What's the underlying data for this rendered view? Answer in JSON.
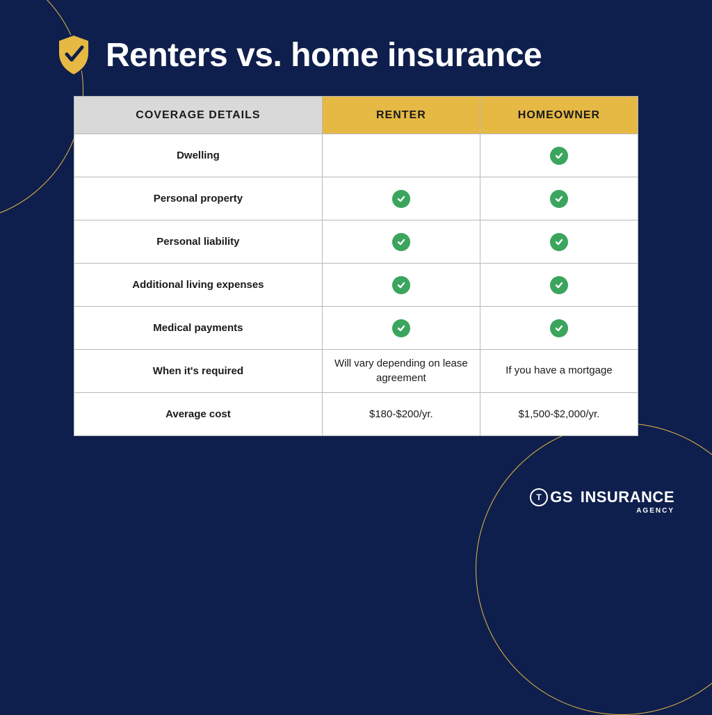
{
  "title": "Renters vs. home insurance",
  "table": {
    "type": "table",
    "background_color": "#ffffff",
    "border_color": "#b8b8b8",
    "header_bg_coverage": "#d9d9d9",
    "header_bg_highlight": "#e6b944",
    "header_fontsize": 16,
    "cell_fontsize": 15,
    "check_color": "#3ba55d",
    "columns": {
      "coverage": "COVERAGE DETAILS",
      "renter": "RENTER",
      "homeowner": "HOMEOWNER"
    },
    "rows": [
      {
        "label": "Dwelling",
        "renter": "",
        "homeowner": "check"
      },
      {
        "label": "Personal property",
        "renter": "check",
        "homeowner": "check"
      },
      {
        "label": "Personal liability",
        "renter": "check",
        "homeowner": "check"
      },
      {
        "label": "Additional living expenses",
        "renter": "check",
        "homeowner": "check"
      },
      {
        "label": "Medical payments",
        "renter": "check",
        "homeowner": "check"
      },
      {
        "label": "When it's required",
        "renter": "Will vary depending on lease agreement",
        "homeowner": "If you have a mortgage"
      },
      {
        "label": "Average cost",
        "renter": "$180-$200/yr.",
        "homeowner": "$1,500-$2,000/yr."
      }
    ]
  },
  "colors": {
    "page_bg": "#0f1f4d",
    "accent_gold": "#e6b944",
    "title_color": "#ffffff"
  },
  "logo": {
    "badge_letter": "T",
    "main_suffix": "GS",
    "main_word": "INSURANCE",
    "sub": "AGENCY"
  }
}
